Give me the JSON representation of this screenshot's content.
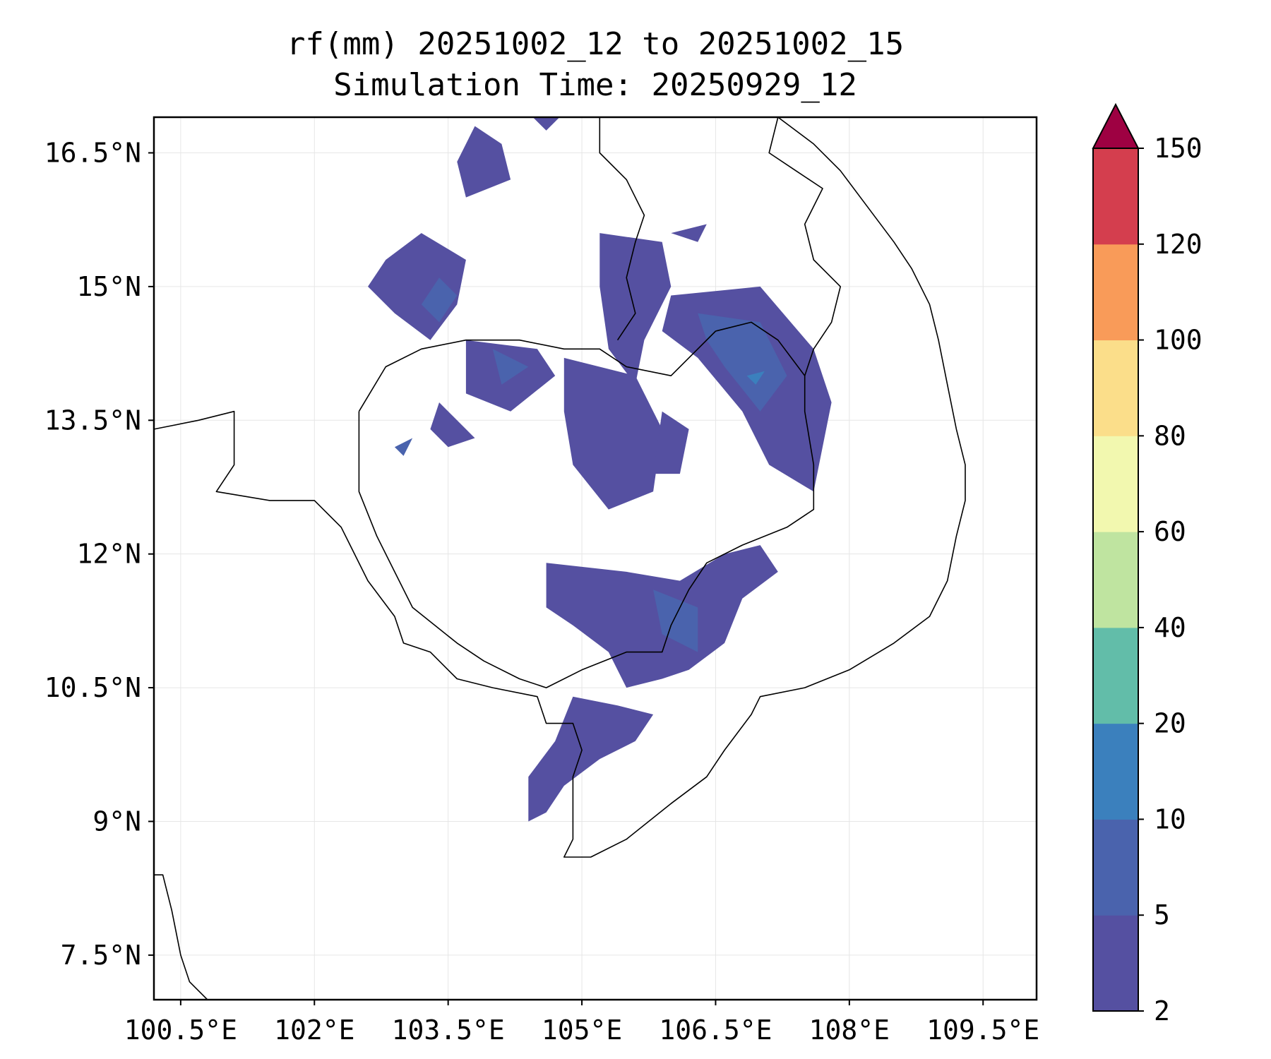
{
  "title": {
    "line1": "rf(mm) 20251002_12 to 20251002_15",
    "line2": "Simulation Time: 20250929_12"
  },
  "map": {
    "extent": {
      "lon_min": 100.2,
      "lon_max": 110.1,
      "lat_min": 7.0,
      "lat_max": 16.9
    },
    "lon_ticks": [
      100.5,
      102,
      103.5,
      105,
      106.5,
      108,
      109.5
    ],
    "lon_tick_labels": [
      "100.5°E",
      "102°E",
      "103.5°E",
      "105°E",
      "106.5°E",
      "108°E",
      "109.5°E"
    ],
    "lat_ticks": [
      7.5,
      9,
      10.5,
      12,
      13.5,
      15,
      16.5
    ],
    "lat_tick_labels": [
      "7.5°N",
      "9°N",
      "10.5°N",
      "12°N",
      "13.5°N",
      "15°N",
      "16.5°N"
    ],
    "gridlines": true
  },
  "colorbar": {
    "levels": [
      2,
      5,
      10,
      20,
      40,
      60,
      80,
      100,
      120,
      150
    ],
    "tick_labels": [
      "2",
      "5",
      "10",
      "20",
      "40",
      "60",
      "80",
      "100",
      "120",
      "150"
    ],
    "colors": [
      "#5550a1",
      "#4a63ad",
      "#3b80bd",
      "#62bda9",
      "#bfe4a0",
      "#f2f8af",
      "#fbde8a",
      "#f99b59",
      "#d43e4e"
    ],
    "extend_color": "#9e0142"
  },
  "rain_regions": [
    {
      "name": "north-cluster",
      "band": 1,
      "points": [
        [
          103.7,
          16.0
        ],
        [
          104.2,
          16.2
        ],
        [
          104.1,
          16.6
        ],
        [
          103.8,
          16.8
        ],
        [
          103.6,
          16.4
        ]
      ]
    },
    {
      "name": "northwest-cluster",
      "band": 1,
      "points": [
        [
          103.2,
          15.6
        ],
        [
          103.7,
          15.3
        ],
        [
          103.6,
          14.8
        ],
        [
          103.3,
          14.4
        ],
        [
          102.9,
          14.7
        ],
        [
          102.6,
          15.0
        ],
        [
          102.8,
          15.3
        ]
      ]
    },
    {
      "name": "northwest-cluster-core",
      "band": 2,
      "points": [
        [
          103.4,
          15.1
        ],
        [
          103.6,
          14.9
        ],
        [
          103.4,
          14.6
        ],
        [
          103.2,
          14.8
        ]
      ]
    },
    {
      "name": "north-cambodia-strip",
      "band": 1,
      "points": [
        [
          103.7,
          14.4
        ],
        [
          104.5,
          14.3
        ],
        [
          104.7,
          14.0
        ],
        [
          104.2,
          13.6
        ],
        [
          103.7,
          13.8
        ]
      ]
    },
    {
      "name": "north-cambodia-strip-core",
      "band": 2,
      "points": [
        [
          104.0,
          14.3
        ],
        [
          104.4,
          14.1
        ],
        [
          104.1,
          13.9
        ]
      ]
    },
    {
      "name": "west-cambodia-patch",
      "band": 1,
      "points": [
        [
          103.4,
          13.7
        ],
        [
          103.6,
          13.5
        ],
        [
          103.8,
          13.3
        ],
        [
          103.5,
          13.2
        ],
        [
          103.3,
          13.4
        ]
      ]
    },
    {
      "name": "west-cambodia-dot",
      "band": 2,
      "points": [
        [
          102.9,
          13.2
        ],
        [
          103.1,
          13.3
        ],
        [
          103.0,
          13.1
        ]
      ]
    },
    {
      "name": "laos-south-band",
      "band": 1,
      "points": [
        [
          105.2,
          15.6
        ],
        [
          105.9,
          15.5
        ],
        [
          106.0,
          15.0
        ],
        [
          105.7,
          14.4
        ],
        [
          105.6,
          13.9
        ],
        [
          105.3,
          14.3
        ],
        [
          105.2,
          15.0
        ]
      ]
    },
    {
      "name": "east-highlands",
      "band": 1,
      "points": [
        [
          106.0,
          14.9
        ],
        [
          107.0,
          15.0
        ],
        [
          107.6,
          14.3
        ],
        [
          107.8,
          13.7
        ],
        [
          107.6,
          12.7
        ],
        [
          107.1,
          13.0
        ],
        [
          106.8,
          13.6
        ],
        [
          106.3,
          14.2
        ],
        [
          105.9,
          14.5
        ]
      ]
    },
    {
      "name": "east-highlands-core",
      "band": 2,
      "points": [
        [
          106.3,
          14.7
        ],
        [
          107.0,
          14.6
        ],
        [
          107.3,
          14.0
        ],
        [
          107.0,
          13.6
        ],
        [
          106.6,
          14.1
        ],
        [
          106.4,
          14.4
        ]
      ]
    },
    {
      "name": "east-highlands-peak",
      "band": 3,
      "points": [
        [
          106.85,
          14.0
        ],
        [
          107.05,
          14.05
        ],
        [
          106.95,
          13.9
        ]
      ]
    },
    {
      "name": "central-cambodia-cells",
      "band": 1,
      "points": [
        [
          104.8,
          14.2
        ],
        [
          105.6,
          14.0
        ],
        [
          105.9,
          13.4
        ],
        [
          105.8,
          12.7
        ],
        [
          105.3,
          12.5
        ],
        [
          104.9,
          13.0
        ],
        [
          104.8,
          13.6
        ]
      ]
    },
    {
      "name": "central-cambodia-east",
      "band": 1,
      "points": [
        [
          105.9,
          13.6
        ],
        [
          106.2,
          13.4
        ],
        [
          106.1,
          12.9
        ],
        [
          105.8,
          12.9
        ]
      ]
    },
    {
      "name": "southeast-cambodia",
      "band": 1,
      "points": [
        [
          104.6,
          11.9
        ],
        [
          105.5,
          11.8
        ],
        [
          106.1,
          11.7
        ],
        [
          106.6,
          12.0
        ],
        [
          107.0,
          12.1
        ],
        [
          107.2,
          11.8
        ],
        [
          106.8,
          11.5
        ],
        [
          106.6,
          11.0
        ],
        [
          106.2,
          10.7
        ],
        [
          105.9,
          10.6
        ],
        [
          105.5,
          10.5
        ],
        [
          105.3,
          10.9
        ],
        [
          104.9,
          11.2
        ],
        [
          104.6,
          11.4
        ]
      ]
    },
    {
      "name": "southeast-cambodia-core",
      "band": 2,
      "points": [
        [
          105.8,
          11.6
        ],
        [
          106.3,
          11.4
        ],
        [
          106.3,
          10.9
        ],
        [
          105.9,
          11.1
        ]
      ]
    },
    {
      "name": "mekong-delta-band",
      "band": 1,
      "points": [
        [
          104.9,
          10.4
        ],
        [
          105.4,
          10.3
        ],
        [
          105.8,
          10.2
        ],
        [
          105.6,
          9.9
        ],
        [
          105.2,
          9.7
        ],
        [
          104.8,
          9.4
        ],
        [
          104.6,
          9.1
        ],
        [
          104.4,
          9.0
        ],
        [
          104.4,
          9.5
        ],
        [
          104.7,
          9.9
        ]
      ]
    },
    {
      "name": "north-laos-patch",
      "band": 1,
      "points": [
        [
          104.4,
          16.95
        ],
        [
          104.8,
          16.95
        ],
        [
          104.6,
          16.75
        ]
      ]
    },
    {
      "name": "northeast-patch",
      "band": 1,
      "points": [
        [
          106.0,
          15.6
        ],
        [
          106.4,
          15.7
        ],
        [
          106.3,
          15.5
        ]
      ]
    }
  ],
  "coastlines": [
    {
      "name": "thailand-cambodia-border",
      "points": [
        [
          100.2,
          13.4
        ],
        [
          100.7,
          13.5
        ],
        [
          101.1,
          13.6
        ],
        [
          101.1,
          13.0
        ],
        [
          100.9,
          12.7
        ],
        [
          101.5,
          12.6
        ],
        [
          102.0,
          12.6
        ],
        [
          102.3,
          12.3
        ],
        [
          102.6,
          11.7
        ],
        [
          102.9,
          11.3
        ],
        [
          103.0,
          11.0
        ],
        [
          103.3,
          10.9
        ],
        [
          103.6,
          10.6
        ],
        [
          104.0,
          10.5
        ],
        [
          104.5,
          10.4
        ],
        [
          104.6,
          10.1
        ],
        [
          104.9,
          10.1
        ],
        [
          105.0,
          9.8
        ],
        [
          104.9,
          9.5
        ],
        [
          104.9,
          8.8
        ],
        [
          104.8,
          8.6
        ],
        [
          105.1,
          8.6
        ],
        [
          105.5,
          8.8
        ],
        [
          106.0,
          9.2
        ],
        [
          106.4,
          9.5
        ],
        [
          106.6,
          9.8
        ],
        [
          106.9,
          10.2
        ],
        [
          107.0,
          10.4
        ],
        [
          107.5,
          10.5
        ],
        [
          108.0,
          10.7
        ],
        [
          108.5,
          11.0
        ],
        [
          108.9,
          11.3
        ],
        [
          109.1,
          11.7
        ],
        [
          109.2,
          12.2
        ],
        [
          109.3,
          12.6
        ],
        [
          109.3,
          13.0
        ],
        [
          109.2,
          13.4
        ],
        [
          109.1,
          13.9
        ],
        [
          109.0,
          14.4
        ],
        [
          108.9,
          14.8
        ],
        [
          108.7,
          15.2
        ],
        [
          108.5,
          15.5
        ],
        [
          108.2,
          15.9
        ],
        [
          107.9,
          16.3
        ],
        [
          107.6,
          16.6
        ],
        [
          107.2,
          16.9
        ]
      ]
    },
    {
      "name": "cambodia-laos-border",
      "points": [
        [
          102.5,
          13.6
        ],
        [
          102.8,
          14.1
        ],
        [
          103.2,
          14.3
        ],
        [
          103.7,
          14.4
        ],
        [
          104.3,
          14.4
        ],
        [
          104.8,
          14.3
        ],
        [
          105.2,
          14.3
        ],
        [
          105.5,
          14.1
        ],
        [
          106.0,
          14.0
        ],
        [
          106.5,
          14.5
        ],
        [
          106.9,
          14.6
        ],
        [
          107.2,
          14.4
        ],
        [
          107.5,
          14.0
        ],
        [
          107.5,
          13.6
        ],
        [
          107.6,
          13.0
        ],
        [
          107.6,
          12.5
        ],
        [
          107.3,
          12.3
        ],
        [
          106.8,
          12.1
        ],
        [
          106.4,
          11.9
        ],
        [
          106.2,
          11.6
        ],
        [
          106.0,
          11.2
        ],
        [
          105.9,
          10.9
        ],
        [
          105.5,
          10.9
        ],
        [
          105.0,
          10.7
        ],
        [
          104.6,
          10.5
        ],
        [
          104.3,
          10.6
        ],
        [
          103.9,
          10.8
        ],
        [
          103.6,
          11.0
        ],
        [
          103.1,
          11.4
        ],
        [
          102.9,
          11.8
        ],
        [
          102.7,
          12.2
        ],
        [
          102.5,
          12.7
        ],
        [
          102.5,
          13.1
        ],
        [
          102.5,
          13.6
        ]
      ]
    },
    {
      "name": "laos-vietnam-border",
      "points": [
        [
          105.2,
          16.9
        ],
        [
          105.2,
          16.5
        ],
        [
          105.5,
          16.2
        ],
        [
          105.7,
          15.8
        ],
        [
          105.6,
          15.5
        ],
        [
          105.5,
          15.1
        ],
        [
          105.6,
          14.7
        ],
        [
          105.4,
          14.4
        ]
      ]
    },
    {
      "name": "vietnam-inner-border",
      "points": [
        [
          107.2,
          16.9
        ],
        [
          107.1,
          16.5
        ],
        [
          107.4,
          16.3
        ],
        [
          107.7,
          16.1
        ],
        [
          107.5,
          15.7
        ],
        [
          107.6,
          15.3
        ],
        [
          107.9,
          15.0
        ],
        [
          107.8,
          14.6
        ],
        [
          107.6,
          14.3
        ],
        [
          107.5,
          14.0
        ]
      ]
    },
    {
      "name": "malay-peninsula",
      "points": [
        [
          100.2,
          8.4
        ],
        [
          100.3,
          8.4
        ],
        [
          100.4,
          8.0
        ],
        [
          100.5,
          7.5
        ],
        [
          100.6,
          7.2
        ],
        [
          100.8,
          7.0
        ]
      ]
    }
  ]
}
